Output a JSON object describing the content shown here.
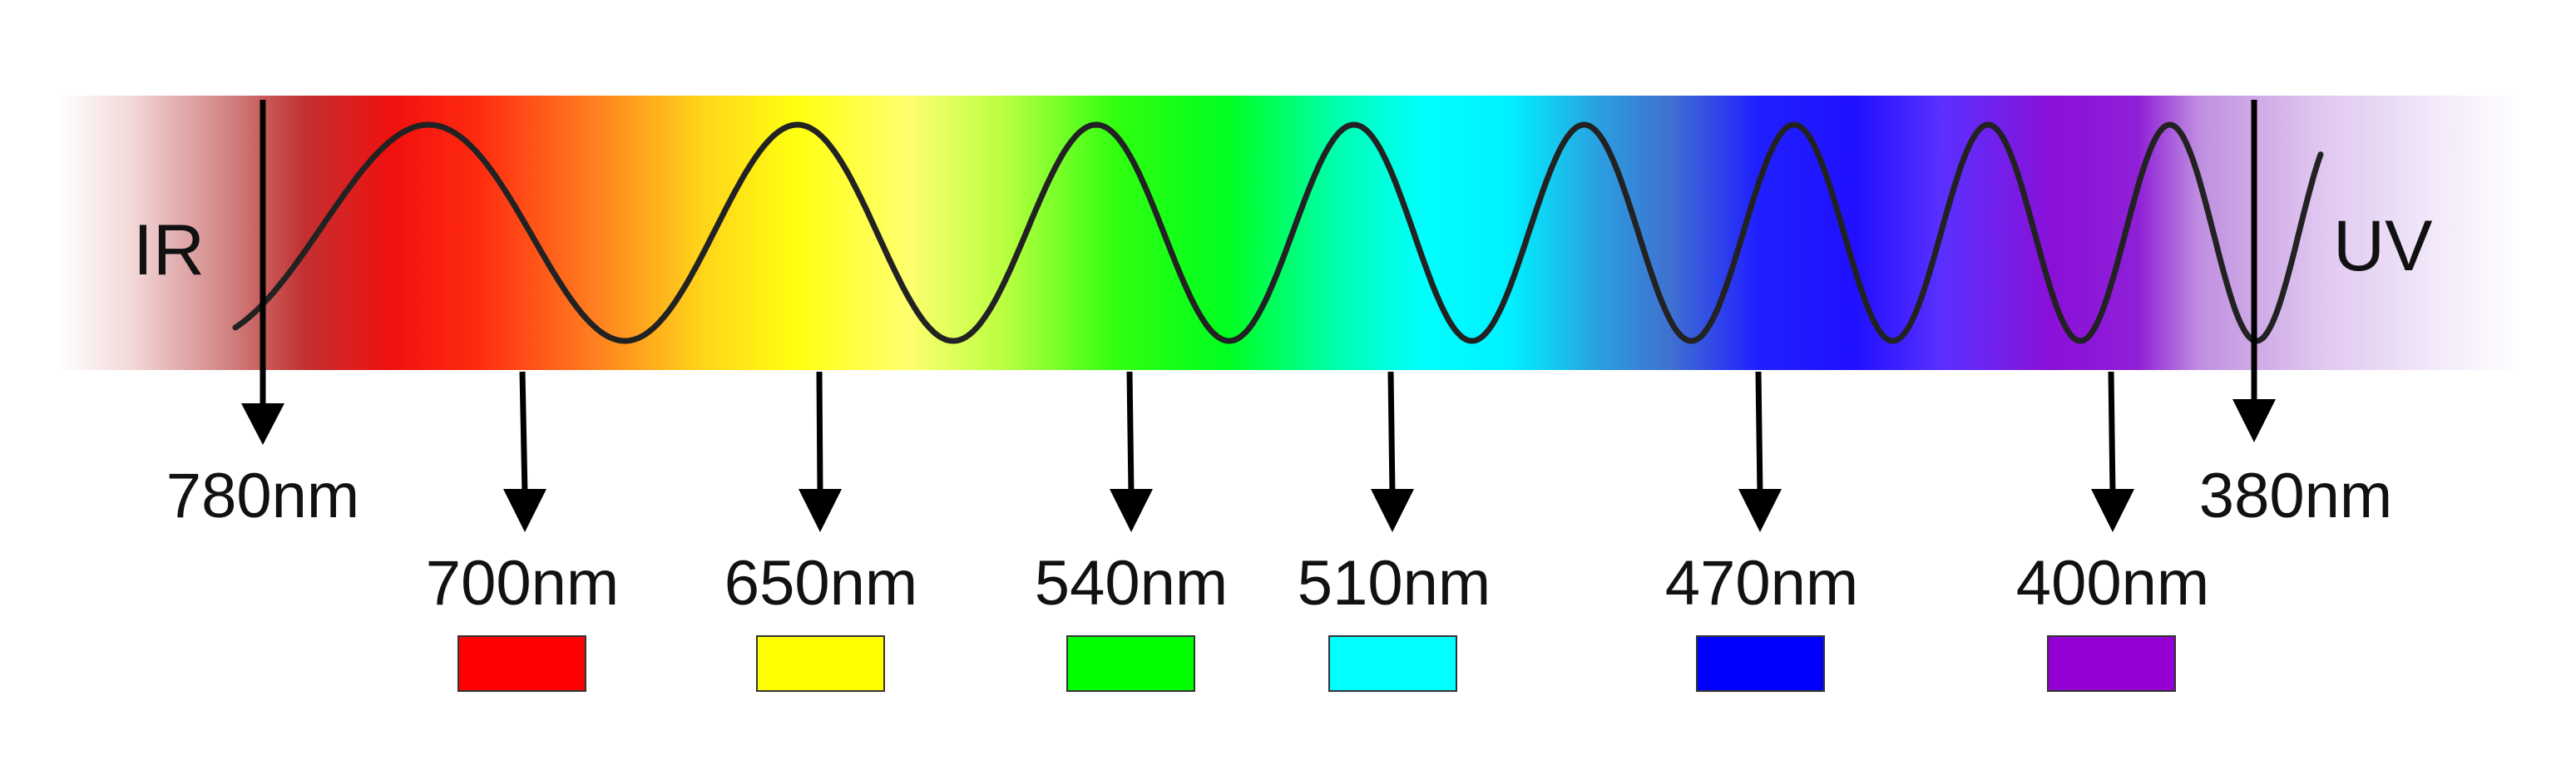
{
  "labels": {
    "ir": "IR",
    "uv": "UV",
    "boundary_long": "780nm",
    "boundary_short": "380nm"
  },
  "bands": [
    {
      "label": "700nm",
      "color": "#ff0000"
    },
    {
      "label": "650nm",
      "color": "#ffff00"
    },
    {
      "label": "540nm",
      "color": "#00ff00"
    },
    {
      "label": "510nm",
      "color": "#00ffff"
    },
    {
      "label": "470nm",
      "color": "#0000ff"
    },
    {
      "label": "400nm",
      "color": "#9400d3"
    }
  ],
  "colors": {
    "wave": "#222222",
    "arrow": "#000000",
    "text": "#111111"
  }
}
